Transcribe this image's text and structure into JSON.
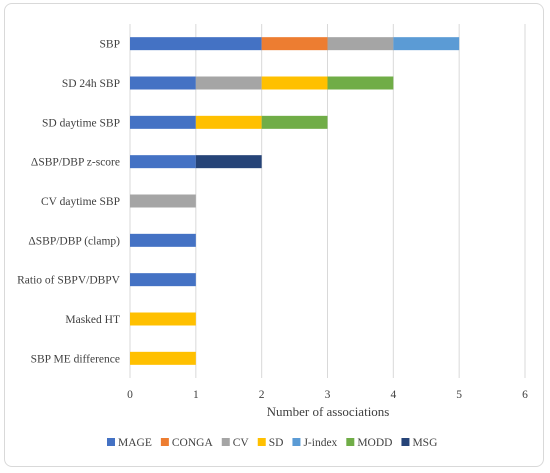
{
  "chart_data": {
    "type": "bar",
    "orientation": "horizontal",
    "stacked": true,
    "categories": [
      "SBP",
      "SD 24h SBP",
      "SD daytime SBP",
      "ΔSBP/DBP z-score",
      "CV daytime SBP",
      "ΔSBP/DBP (clamp)",
      "Ratio of SBPV/DBPV",
      "Masked HT",
      "SBP ME difference"
    ],
    "series": [
      {
        "name": "MAGE",
        "color": "#4472c4",
        "values": [
          2,
          1,
          1,
          1,
          0,
          1,
          1,
          0,
          0
        ]
      },
      {
        "name": "CONGA",
        "color": "#ed7d31",
        "values": [
          1,
          0,
          0,
          0,
          0,
          0,
          0,
          0,
          0
        ]
      },
      {
        "name": "CV",
        "color": "#a5a5a5",
        "values": [
          1,
          1,
          0,
          0,
          1,
          0,
          0,
          0,
          0
        ]
      },
      {
        "name": "SD",
        "color": "#ffc000",
        "values": [
          0,
          1,
          1,
          0,
          0,
          0,
          0,
          1,
          1
        ]
      },
      {
        "name": "J-index",
        "color": "#5b9bd5",
        "values": [
          1,
          0,
          0,
          0,
          0,
          0,
          0,
          0,
          0
        ]
      },
      {
        "name": "MODD",
        "color": "#70ad47",
        "values": [
          0,
          1,
          1,
          0,
          0,
          0,
          0,
          0,
          0
        ]
      },
      {
        "name": "MSG",
        "color": "#264478",
        "values": [
          0,
          0,
          0,
          1,
          0,
          0,
          0,
          0,
          0
        ]
      }
    ],
    "xlabel": "Number of associations",
    "xlim": [
      0,
      6
    ],
    "xticks": [
      0,
      1,
      2,
      3,
      4,
      5,
      6
    ],
    "grid": "vertical",
    "legend": "bottom"
  }
}
